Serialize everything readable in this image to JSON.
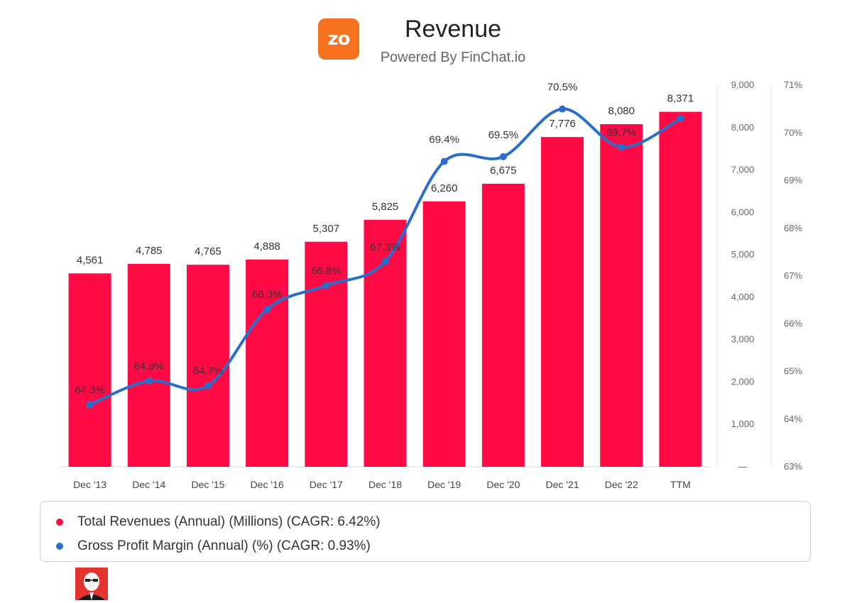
{
  "header": {
    "logo_text": "zo",
    "title": "Revenue",
    "subtitle": "Powered By FinChat.io",
    "accent_color": "#f7721f"
  },
  "chart_data": {
    "type": "bar",
    "title": "Revenue",
    "categories": [
      "Dec '13",
      "Dec '14",
      "Dec '15",
      "Dec '16",
      "Dec '17",
      "Dec '18",
      "Dec '19",
      "Dec '20",
      "Dec '21",
      "Dec '22",
      "TTM"
    ],
    "series": [
      {
        "name": "Total Revenues (Annual) (Millions) (CAGR: 6.42%)",
        "type": "bar",
        "axis": "left",
        "color": "#ff0a45",
        "values": [
          4561,
          4785,
          4765,
          4888,
          5307,
          5825,
          6260,
          6675,
          7776,
          8080,
          8371
        ],
        "labels": [
          "4,561",
          "4,785",
          "4,765",
          "4,888",
          "5,307",
          "5,825",
          "6,260",
          "6,675",
          "7,776",
          "8,080",
          "8,371"
        ]
      },
      {
        "name": "Gross Profit Margin (Annual) (%) (CAGR: 0.93%)",
        "type": "line",
        "axis": "right",
        "color": "#2a6ecb",
        "values": [
          64.3,
          64.8,
          64.7,
          66.3,
          66.8,
          67.3,
          69.4,
          69.5,
          70.5,
          69.7,
          70.3
        ],
        "labels": [
          "64.3%",
          "64.8%",
          "64.7%",
          "66.3%",
          "66.8%",
          "67.3%",
          "69.4%",
          "69.5%",
          "70.5%",
          "69.7%",
          ""
        ]
      }
    ],
    "y_left": {
      "range": [
        0,
        9000
      ],
      "ticks": [
        0,
        1000,
        2000,
        3000,
        4000,
        5000,
        6000,
        7000,
        8000,
        9000
      ],
      "tick_labels": [
        "—",
        "1,000",
        "2,000",
        "3,000",
        "4,000",
        "5,000",
        "6,000",
        "7,000",
        "8,000",
        "9,000"
      ]
    },
    "y_right": {
      "range": [
        63,
        71
      ],
      "ticks": [
        63,
        64,
        65,
        66,
        67,
        68,
        69,
        70,
        71
      ],
      "tick_labels": [
        "63%",
        "64%",
        "65%",
        "66%",
        "67%",
        "68%",
        "69%",
        "70%",
        "71%"
      ]
    },
    "legend_position": "bottom"
  },
  "legend": {
    "items": [
      {
        "label": "Total Revenues (Annual) (Millions) (CAGR: 6.42%)",
        "color": "#ff0a45"
      },
      {
        "label": "Gross Profit Margin (Annual) (%) (CAGR: 0.93%)",
        "color": "#2a6ecb"
      }
    ]
  }
}
